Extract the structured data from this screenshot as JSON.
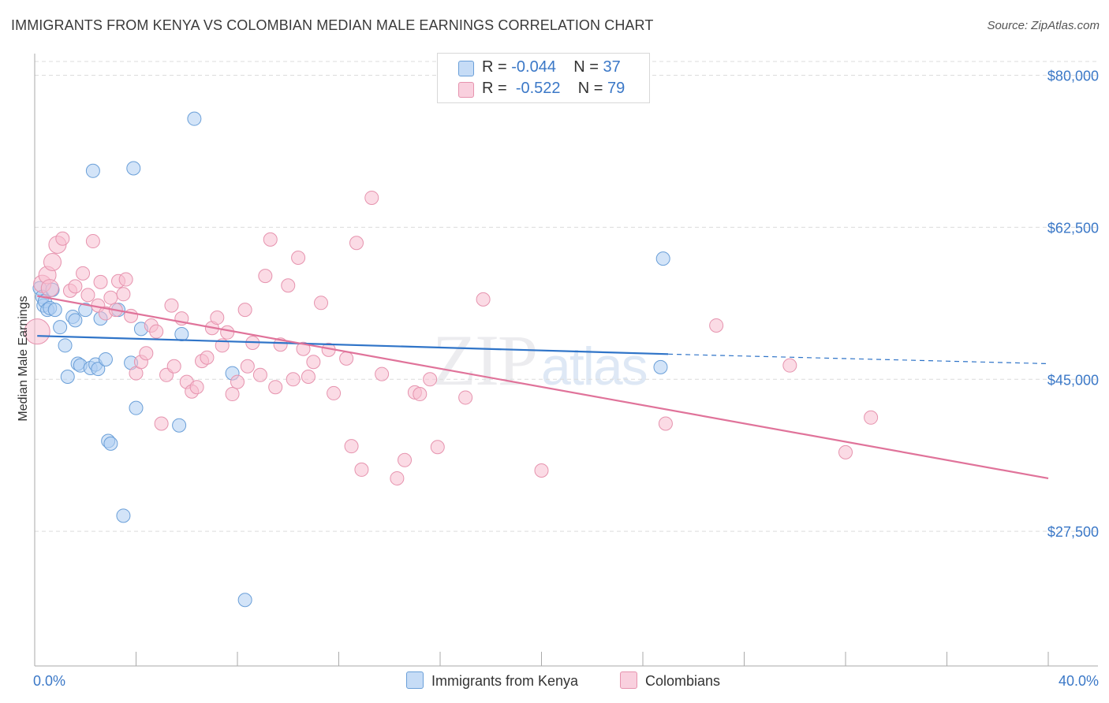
{
  "title": "IMMIGRANTS FROM KENYA VS COLOMBIAN MEDIAN MALE EARNINGS CORRELATION CHART",
  "source": "Source: ZipAtlas.com",
  "watermark": {
    "zip": "ZIP",
    "atlas": "atlas"
  },
  "legend": {
    "r_label": "R =",
    "n_label": "N =",
    "rows": [
      {
        "r": "-0.044",
        "n": "37"
      },
      {
        "r": "-0.522",
        "n": "79"
      }
    ]
  },
  "colors": {
    "kenya_fill": "#aecdf2",
    "kenya_stroke": "#6a9fd8",
    "kenya_line": "#2f74c8",
    "col_fill": "#f7bdd0",
    "col_stroke": "#e693ae",
    "col_line": "#e0739a",
    "tick": "#3b78c7",
    "grid": "#dcdcdc"
  },
  "chart_data": {
    "type": "scatter",
    "title": "IMMIGRANTS FROM KENYA VS COLOMBIAN MEDIAN MALE EARNINGS CORRELATION CHART",
    "xlabel": "",
    "ylabel": "Median Male Earnings",
    "xlim": [
      0,
      40
    ],
    "ylim": [
      12000,
      82500
    ],
    "x_tick_labels": [
      {
        "value": 0,
        "label": "0.0%"
      },
      {
        "value": 40,
        "label": "40.0%"
      }
    ],
    "y_ticks": [
      {
        "value": 80000,
        "label": "$80,000"
      },
      {
        "value": 62500,
        "label": "$62,500"
      },
      {
        "value": 45000,
        "label": "$45,000"
      },
      {
        "value": 27500,
        "label": "$27,500"
      }
    ],
    "series": [
      {
        "name": "Immigrants from Kenya",
        "color": "kenya",
        "trend": {
          "x0": 0.1,
          "y0": 50000,
          "x1": 25,
          "y1": 47900,
          "dash_to_x": 40,
          "dash_to_y": 46800
        },
        "points": [
          [
            0.2,
            55500
          ],
          [
            0.3,
            54500
          ],
          [
            0.35,
            53500
          ],
          [
            0.4,
            54000
          ],
          [
            0.5,
            53000
          ],
          [
            0.6,
            53200
          ],
          [
            0.7,
            55300
          ],
          [
            0.8,
            53000
          ],
          [
            1.0,
            51000
          ],
          [
            1.2,
            48900
          ],
          [
            1.3,
            45300
          ],
          [
            1.5,
            52200
          ],
          [
            1.6,
            51800
          ],
          [
            1.7,
            46800
          ],
          [
            1.8,
            46600
          ],
          [
            2.0,
            53000
          ],
          [
            2.2,
            46300
          ],
          [
            2.3,
            69000
          ],
          [
            2.4,
            46700
          ],
          [
            2.5,
            46200
          ],
          [
            2.6,
            52000
          ],
          [
            2.8,
            47300
          ],
          [
            2.9,
            37900
          ],
          [
            3.0,
            37600
          ],
          [
            3.3,
            53000
          ],
          [
            3.5,
            29300
          ],
          [
            3.8,
            46900
          ],
          [
            3.9,
            69300
          ],
          [
            4.0,
            41700
          ],
          [
            4.2,
            50800
          ],
          [
            5.7,
            39700
          ],
          [
            5.8,
            50200
          ],
          [
            6.3,
            75000
          ],
          [
            7.8,
            45700
          ],
          [
            8.3,
            19600
          ],
          [
            24.8,
            58900
          ],
          [
            24.7,
            46400
          ]
        ]
      },
      {
        "name": "Colombians",
        "color": "col",
        "trend": {
          "x0": 0.1,
          "y0": 54600,
          "x1": 40,
          "y1": 33600
        },
        "points": [
          [
            0.1,
            50500
          ],
          [
            0.3,
            56000
          ],
          [
            0.5,
            57000
          ],
          [
            0.6,
            55500
          ],
          [
            0.7,
            58500
          ],
          [
            0.9,
            60500
          ],
          [
            1.1,
            61200
          ],
          [
            1.4,
            55200
          ],
          [
            1.6,
            55700
          ],
          [
            1.9,
            57200
          ],
          [
            2.1,
            54700
          ],
          [
            2.3,
            60900
          ],
          [
            2.5,
            53500
          ],
          [
            2.6,
            56200
          ],
          [
            2.8,
            52600
          ],
          [
            3.0,
            54400
          ],
          [
            3.2,
            53000
          ],
          [
            3.3,
            56300
          ],
          [
            3.5,
            54800
          ],
          [
            3.6,
            56500
          ],
          [
            3.8,
            52300
          ],
          [
            4.0,
            45700
          ],
          [
            4.2,
            47000
          ],
          [
            4.4,
            48000
          ],
          [
            4.6,
            51200
          ],
          [
            4.8,
            50500
          ],
          [
            5.0,
            39900
          ],
          [
            5.2,
            45500
          ],
          [
            5.4,
            53500
          ],
          [
            5.5,
            46500
          ],
          [
            5.8,
            52000
          ],
          [
            6.0,
            44700
          ],
          [
            6.2,
            43600
          ],
          [
            6.4,
            44100
          ],
          [
            6.6,
            47100
          ],
          [
            6.8,
            47500
          ],
          [
            7.0,
            50900
          ],
          [
            7.2,
            52100
          ],
          [
            7.4,
            48900
          ],
          [
            7.6,
            50400
          ],
          [
            7.8,
            43300
          ],
          [
            8.0,
            44700
          ],
          [
            8.3,
            53000
          ],
          [
            8.4,
            46500
          ],
          [
            8.6,
            49200
          ],
          [
            8.9,
            45500
          ],
          [
            9.1,
            56900
          ],
          [
            9.3,
            61100
          ],
          [
            9.5,
            44100
          ],
          [
            9.7,
            49000
          ],
          [
            10.0,
            55800
          ],
          [
            10.2,
            45000
          ],
          [
            10.4,
            59000
          ],
          [
            10.6,
            48500
          ],
          [
            10.8,
            45300
          ],
          [
            11.0,
            47000
          ],
          [
            11.3,
            53800
          ],
          [
            11.6,
            48400
          ],
          [
            11.8,
            43400
          ],
          [
            12.3,
            47400
          ],
          [
            12.5,
            37300
          ],
          [
            12.7,
            60700
          ],
          [
            12.9,
            34600
          ],
          [
            13.3,
            65900
          ],
          [
            13.7,
            45600
          ],
          [
            14.3,
            33600
          ],
          [
            14.6,
            35700
          ],
          [
            15.0,
            43500
          ],
          [
            15.2,
            43300
          ],
          [
            15.6,
            45000
          ],
          [
            15.9,
            37200
          ],
          [
            17.0,
            42900
          ],
          [
            17.7,
            54200
          ],
          [
            20.0,
            34500
          ],
          [
            24.9,
            39900
          ],
          [
            26.9,
            51200
          ],
          [
            29.8,
            46600
          ],
          [
            32.0,
            36600
          ],
          [
            33.0,
            40600
          ]
        ]
      }
    ]
  },
  "bottom_legend": [
    "Immigrants from Kenya",
    "Colombians"
  ]
}
